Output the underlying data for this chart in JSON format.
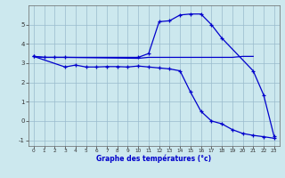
{
  "xlabel": "Graphe des températures (°c)",
  "background_color": "#cce8ee",
  "line_color": "#0000cc",
  "grid_color": "#99bbcc",
  "xlim": [
    -0.5,
    23.5
  ],
  "ylim": [
    -1.3,
    6.0
  ],
  "yticks": [
    -1,
    0,
    1,
    2,
    3,
    4,
    5
  ],
  "xticks": [
    0,
    1,
    2,
    3,
    4,
    5,
    6,
    7,
    8,
    9,
    10,
    11,
    12,
    13,
    14,
    15,
    16,
    17,
    18,
    19,
    20,
    21,
    22,
    23
  ],
  "line1_x": [
    0,
    1,
    2,
    3,
    10,
    11,
    12,
    13,
    14,
    15,
    16,
    17,
    18,
    21,
    22,
    23
  ],
  "line1_y": [
    3.35,
    3.3,
    3.3,
    3.3,
    3.3,
    3.5,
    5.15,
    5.2,
    5.5,
    5.55,
    5.55,
    5.0,
    4.3,
    2.6,
    1.35,
    -0.8
  ],
  "line2_x": [
    0,
    1,
    2,
    3,
    10,
    11,
    12,
    13,
    14,
    17,
    18,
    19,
    20,
    21
  ],
  "line2_y": [
    3.35,
    3.3,
    3.3,
    3.3,
    3.25,
    3.3,
    3.3,
    3.3,
    3.3,
    3.3,
    3.3,
    3.3,
    3.35,
    3.35
  ],
  "line3_x": [
    0,
    3,
    4,
    5,
    6,
    7,
    8,
    9,
    10,
    11,
    12,
    13,
    14,
    15,
    16,
    17,
    18,
    19,
    20,
    21,
    22,
    23
  ],
  "line3_y": [
    3.35,
    2.8,
    2.9,
    2.8,
    2.8,
    2.82,
    2.82,
    2.8,
    2.85,
    2.8,
    2.75,
    2.7,
    2.6,
    1.5,
    0.5,
    -0.0,
    -0.15,
    -0.45,
    -0.65,
    -0.75,
    -0.82,
    -0.9
  ]
}
